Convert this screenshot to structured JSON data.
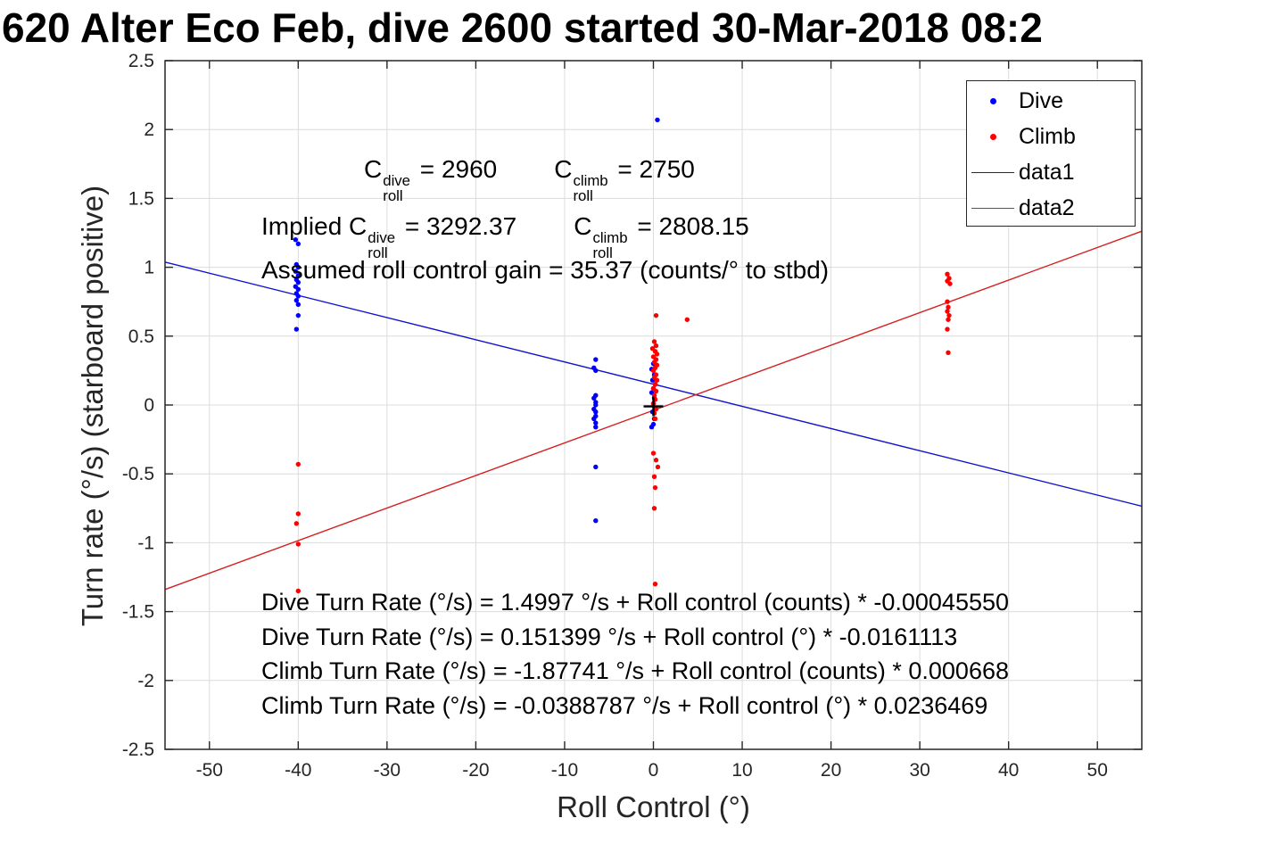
{
  "title": "620 Alter Eco Feb, dive 2600 started 30-Mar-2018 08:2",
  "annotations": {
    "croll": {
      "symbol": "C",
      "sub": "roll",
      "dive_sup": "dive",
      "dive_eq": " = 2960",
      "climb_sup": "climb",
      "climb_eq": " = 2750"
    },
    "implied": {
      "lead": "Implied ",
      "symbol": "C",
      "sub": "roll",
      "dive_sup": "dive",
      "dive_eq": " = 3292.37",
      "climb_sup": "climb",
      "climb_eq": " = 2808.15"
    },
    "gain_text": "Assumed roll control gain = 35.37 (counts/° to stbd)",
    "equations": [
      "Dive Turn Rate (°/s) = 1.4997 °/s + Roll control (counts) * -0.00045550",
      "Dive Turn Rate (°/s) = 0.151399 °/s + Roll control (°) * -0.0161113",
      "Climb Turn Rate (°/s) = -1.87741 °/s + Roll control (counts) * 0.000668",
      "Climb Turn Rate (°/s) = -0.0388787 °/s + Roll control (°) * 0.0236469"
    ]
  },
  "legend": {
    "items": [
      {
        "label": "Dive",
        "marker": "dot",
        "color": "#0000ff"
      },
      {
        "label": "Climb",
        "marker": "dot",
        "color": "#ff0000"
      },
      {
        "label": "data1",
        "marker": "line",
        "color": "#1515cc"
      },
      {
        "label": "data2",
        "marker": "line",
        "color": "#d42020"
      }
    ]
  },
  "chart_data": {
    "type": "scatter",
    "title": "620 Alter Eco Feb, dive 2600 started 30-Mar-2018 08:2",
    "xlabel": "Roll Control (°)",
    "ylabel": "Turn rate (°/s) (starboard positive)",
    "xlim": [
      -55,
      55
    ],
    "ylim": [
      -2.5,
      2.5
    ],
    "grid": true,
    "grid_color": "#dcdcdc",
    "axis_color": "#262626",
    "legend_position": "top-right",
    "x_ticks": [
      {
        "v": -50,
        "label": "-50"
      },
      {
        "v": -40,
        "label": "-40"
      },
      {
        "v": -30,
        "label": "-30"
      },
      {
        "v": -20,
        "label": "-20"
      },
      {
        "v": -10,
        "label": "-10"
      },
      {
        "v": 0,
        "label": "0"
      },
      {
        "v": 10,
        "label": "10"
      },
      {
        "v": 20,
        "label": "20"
      },
      {
        "v": 30,
        "label": "30"
      },
      {
        "v": 40,
        "label": "40"
      },
      {
        "v": 50,
        "label": "50"
      }
    ],
    "y_ticks": [
      {
        "v": -2.5,
        "label": "-2.5"
      },
      {
        "v": -2,
        "label": "-2"
      },
      {
        "v": -1.5,
        "label": "-1.5"
      },
      {
        "v": -1,
        "label": "-1"
      },
      {
        "v": -0.5,
        "label": "-0.5"
      },
      {
        "v": 0,
        "label": "0"
      },
      {
        "v": 0.5,
        "label": "0.5"
      },
      {
        "v": 1,
        "label": "1"
      },
      {
        "v": 1.5,
        "label": "1.5"
      },
      {
        "v": 2,
        "label": "2"
      },
      {
        "v": 2.5,
        "label": "2.5"
      }
    ],
    "scatter": [
      {
        "name": "Dive",
        "color": "#0000ff",
        "points": [
          [
            -40.3,
            1.2
          ],
          [
            -40.0,
            1.17
          ],
          [
            -40.2,
            1.02
          ],
          [
            -40.0,
            1.0
          ],
          [
            -40.3,
            0.97
          ],
          [
            -40.0,
            0.94
          ],
          [
            -40.2,
            0.91
          ],
          [
            -40.0,
            0.89
          ],
          [
            -40.3,
            0.86
          ],
          [
            -40.0,
            0.84
          ],
          [
            -40.2,
            0.81
          ],
          [
            -40.0,
            0.79
          ],
          [
            -40.2,
            0.76
          ],
          [
            -40.0,
            0.73
          ],
          [
            -40.0,
            0.65
          ],
          [
            -40.2,
            0.55
          ],
          [
            -6.5,
            0.33
          ],
          [
            -6.7,
            0.27
          ],
          [
            -6.5,
            0.25
          ],
          [
            -6.5,
            0.07
          ],
          [
            -6.7,
            0.05
          ],
          [
            -6.5,
            0.02
          ],
          [
            -6.5,
            0.0
          ],
          [
            -6.7,
            -0.03
          ],
          [
            -6.5,
            -0.05
          ],
          [
            -6.5,
            -0.08
          ],
          [
            -6.7,
            -0.1
          ],
          [
            -6.5,
            -0.13
          ],
          [
            -6.5,
            -0.16
          ],
          [
            -6.5,
            -0.45
          ],
          [
            -6.5,
            -0.84
          ],
          [
            0.45,
            2.07
          ],
          [
            0.0,
            0.3
          ],
          [
            -0.2,
            0.26
          ],
          [
            0.1,
            0.22
          ],
          [
            -0.1,
            0.18
          ],
          [
            0.2,
            0.15
          ],
          [
            0.0,
            0.12
          ],
          [
            -0.2,
            0.09
          ],
          [
            0.1,
            0.05
          ],
          [
            0.0,
            0.01
          ],
          [
            -0.1,
            -0.05
          ],
          [
            0.1,
            -0.1
          ],
          [
            0.0,
            -0.14
          ],
          [
            -0.2,
            -0.16
          ]
        ]
      },
      {
        "name": "Climb",
        "color": "#ff0000",
        "points": [
          [
            -40.0,
            -0.43
          ],
          [
            -40.0,
            -0.79
          ],
          [
            -40.2,
            -0.86
          ],
          [
            -40.0,
            -1.01
          ],
          [
            -40.0,
            -1.35
          ],
          [
            0.3,
            0.65
          ],
          [
            3.8,
            0.62
          ],
          [
            0.1,
            0.46
          ],
          [
            0.3,
            0.43
          ],
          [
            -0.1,
            0.41
          ],
          [
            0.2,
            0.39
          ],
          [
            0.4,
            0.37
          ],
          [
            0.0,
            0.35
          ],
          [
            0.3,
            0.33
          ],
          [
            0.1,
            0.31
          ],
          [
            0.4,
            0.29
          ],
          [
            0.2,
            0.27
          ],
          [
            0.0,
            0.25
          ],
          [
            0.3,
            0.22
          ],
          [
            0.1,
            0.2
          ],
          [
            0.4,
            0.18
          ],
          [
            0.2,
            0.15
          ],
          [
            0.0,
            0.12
          ],
          [
            0.3,
            0.1
          ],
          [
            0.1,
            0.07
          ],
          [
            0.2,
            0.04
          ],
          [
            0.0,
            0.01
          ],
          [
            0.3,
            -0.03
          ],
          [
            0.1,
            -0.06
          ],
          [
            0.2,
            -0.1
          ],
          [
            0.0,
            -0.35
          ],
          [
            0.3,
            -0.4
          ],
          [
            0.5,
            -0.45
          ],
          [
            0.1,
            -0.52
          ],
          [
            0.2,
            -0.6
          ],
          [
            0.1,
            -0.75
          ],
          [
            0.2,
            -1.3
          ],
          [
            33.1,
            0.95
          ],
          [
            33.3,
            0.92
          ],
          [
            33.1,
            0.9
          ],
          [
            33.4,
            0.88
          ],
          [
            33.1,
            0.75
          ],
          [
            33.2,
            0.71
          ],
          [
            33.1,
            0.68
          ],
          [
            33.3,
            0.65
          ],
          [
            33.2,
            0.62
          ],
          [
            33.1,
            0.55
          ],
          [
            33.2,
            0.38
          ]
        ]
      }
    ],
    "lines": [
      {
        "name": "data1",
        "color": "#1515cc",
        "intercept": 0.151399,
        "slope": -0.0161113
      },
      {
        "name": "data2",
        "color": "#d42020",
        "intercept": -0.0388787,
        "slope": 0.0236469
      }
    ],
    "plus_marker": [
      0,
      -0.01
    ]
  }
}
